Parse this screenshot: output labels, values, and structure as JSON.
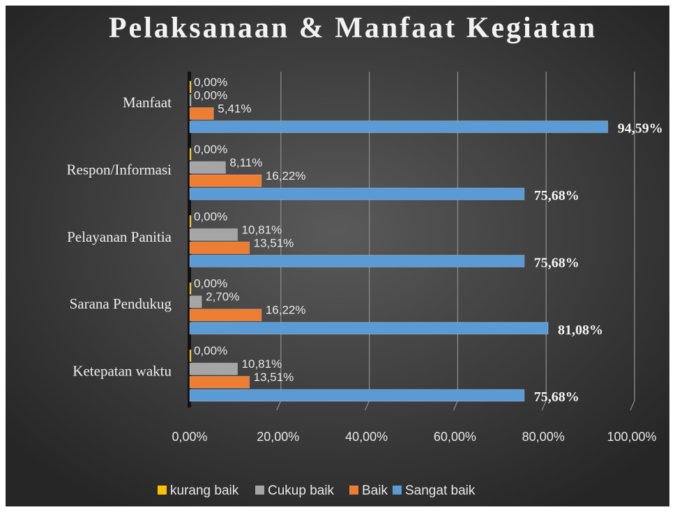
{
  "chart_data": {
    "type": "bar",
    "orientation": "horizontal",
    "title": "Pelaksanaan & Manfaat Kegiatan",
    "categories": [
      "Manfaat",
      "Respon/Informasi",
      "Pelayanan Panitia",
      "Sarana Pendukug",
      "Ketepatan waktu"
    ],
    "series": [
      {
        "name": "kurang baik",
        "color": "#ffc000",
        "values": [
          0,
          0,
          0,
          0,
          0
        ],
        "value_labels": [
          "0,00%",
          "0,00%",
          "0,00%",
          "0,00%",
          "0,00%"
        ]
      },
      {
        "name": "Cukup baik",
        "color": "#a5a5a5",
        "values": [
          0,
          8.11,
          10.81,
          2.7,
          10.81
        ],
        "value_labels": [
          "0,00%",
          "8,11%",
          "10,81%",
          "2,70%",
          "10,81%"
        ]
      },
      {
        "name": "Baik",
        "color": "#ed7d31",
        "values": [
          5.41,
          16.22,
          13.51,
          16.22,
          13.51
        ],
        "value_labels": [
          "5,41%",
          "16,22%",
          "13,51%",
          "16,22%",
          "13,51%"
        ]
      },
      {
        "name": "Sangat baik",
        "color": "#5b9bd5",
        "values": [
          94.59,
          75.68,
          75.68,
          81.08,
          75.68
        ],
        "value_labels": [
          "94,59%",
          "75,68%",
          "75,68%",
          "81,08%",
          "75,68%"
        ]
      }
    ],
    "xlim": [
      0,
      100
    ],
    "xticks": [
      {
        "value": 0,
        "label": "0,00%"
      },
      {
        "value": 20,
        "label": "20,00%"
      },
      {
        "value": 40,
        "label": "40,00%"
      },
      {
        "value": 60,
        "label": "60,00%"
      },
      {
        "value": 80,
        "label": "80,00%"
      },
      {
        "value": 100,
        "label": "100,00%"
      }
    ],
    "grid": true,
    "legend": "bottom"
  }
}
